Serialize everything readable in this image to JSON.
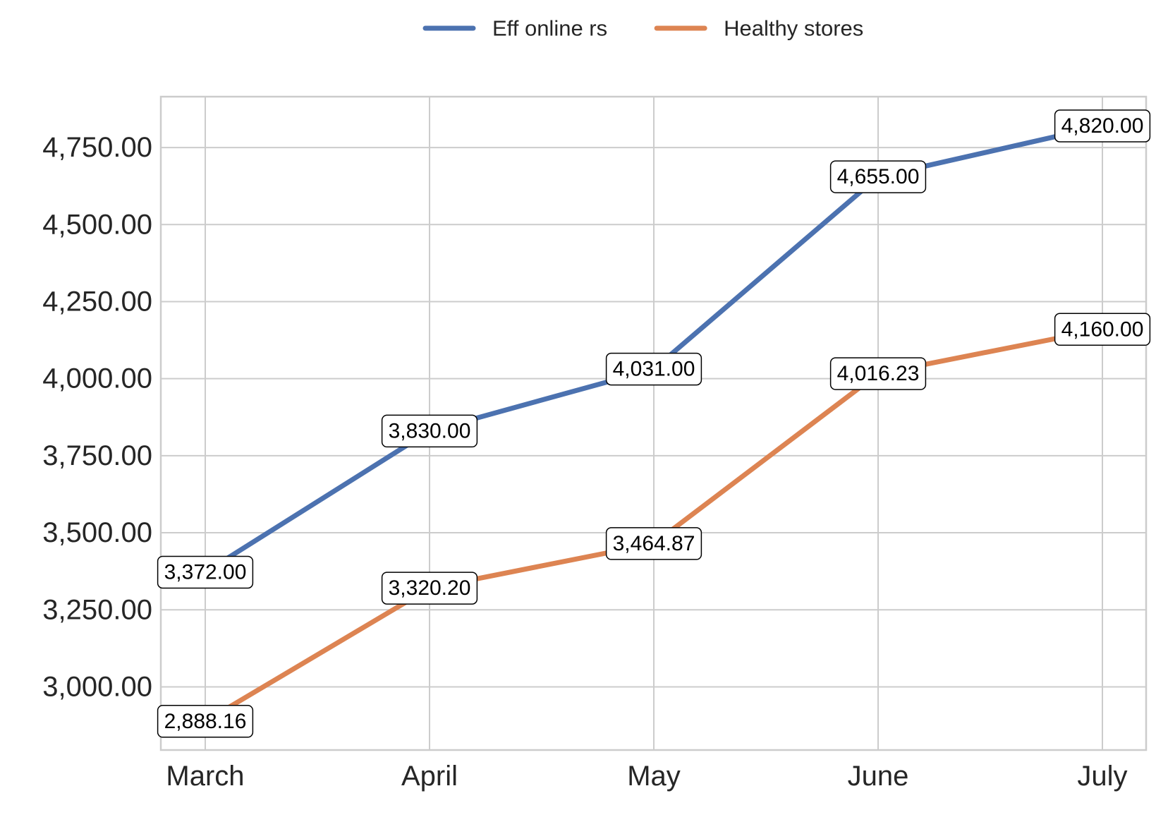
{
  "chart_data": {
    "type": "line",
    "categories": [
      "March",
      "April",
      "May",
      "June",
      "July"
    ],
    "series": [
      {
        "name": "Eff online rs",
        "color": "#4c72b0",
        "values": [
          3372.0,
          3830.0,
          4031.0,
          4655.0,
          4820.0
        ],
        "labels": [
          "3,372.00",
          "3,830.00",
          "4,031.00",
          "4,655.00",
          "4,820.00"
        ]
      },
      {
        "name": "Healthy stores",
        "color": "#dd8452",
        "values": [
          2888.16,
          3320.2,
          3464.87,
          4016.23,
          4160.0
        ],
        "labels": [
          "2,888.16",
          "3,320.20",
          "3,464.87",
          "4,016.23",
          "4,160.00"
        ]
      }
    ],
    "yticks": [
      3000,
      3250,
      3500,
      3750,
      4000,
      4250,
      4500,
      4750
    ],
    "ytick_labels": [
      "3,000.00",
      "3,250.00",
      "3,500.00",
      "3,750.00",
      "4,000.00",
      "4,250.00",
      "4,500.00",
      "4,750.00"
    ],
    "ylim": [
      2795,
      4915
    ],
    "grid": true,
    "legend_position": "top-center",
    "title": "",
    "xlabel": "",
    "ylabel": ""
  }
}
